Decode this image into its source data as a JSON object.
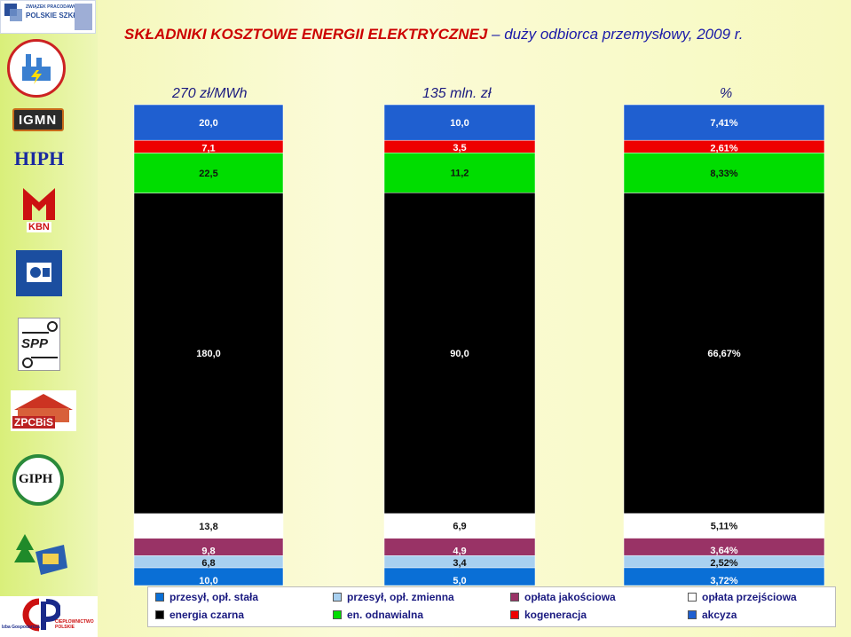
{
  "title": "SKŁADNIKI KOSZTOWE ENERGII ELEKTRYCZNEJ",
  "subtitle": "– duży odbiorca przemysłowy, 2009 r.",
  "logos": {
    "top": [
      "ZWIĄZEK PRACODAWCÓW",
      "POLSKIE SZKŁO"
    ],
    "igmn": "IGMN",
    "hiph": "HIPH",
    "kbn": "KBN",
    "spp": "SPP",
    "zpcbis": "ZPCBiS",
    "giph": "GIPH",
    "bottom": [
      "Izba Gospodarcza",
      "CIEPŁOWNICTWO POLSKIE"
    ]
  },
  "chart_data": {
    "type": "bar",
    "stacked": true,
    "categories": [
      "270 zł/MWh",
      "135 mln. zł",
      "%"
    ],
    "series": [
      {
        "name": "przesył, opł. stała",
        "color": "#0a6fd6",
        "values": [
          10.0,
          5.0,
          3.72
        ],
        "labels": [
          "10,0",
          "5,0",
          "3,72%"
        ]
      },
      {
        "name": "przesył, opł. zmienna",
        "color": "#a8d0f0",
        "values": [
          6.8,
          3.4,
          2.52
        ],
        "labels": [
          "6,8",
          "3,4",
          "2,52%"
        ]
      },
      {
        "name": "opłata jakościowa",
        "color": "#993366",
        "values": [
          9.8,
          4.9,
          3.64
        ],
        "labels": [
          "9,8",
          "4,9",
          "3,64%"
        ]
      },
      {
        "name": "opłata przejściowa",
        "color": "#ffffff",
        "values": [
          13.8,
          6.9,
          5.11
        ],
        "labels": [
          "13,8",
          "6,9",
          "5,11%"
        ]
      },
      {
        "name": "energia czarna",
        "color": "#000000",
        "values": [
          180.0,
          90.0,
          66.67
        ],
        "labels": [
          "180,0",
          "90,0",
          "66,67%"
        ]
      },
      {
        "name": "en. odnawialna",
        "color": "#00dd00",
        "values": [
          22.5,
          11.2,
          8.33
        ],
        "labels": [
          "22,5",
          "11,2",
          "8,33%"
        ]
      },
      {
        "name": "kogeneracja",
        "color": "#ee0000",
        "values": [
          7.1,
          3.5,
          2.61
        ],
        "labels": [
          "7,1",
          "3,5",
          "2,61%"
        ]
      },
      {
        "name": "akcyza",
        "color": "#1f5fd0",
        "values": [
          20.0,
          10.0,
          7.41
        ],
        "labels": [
          "20,0",
          "10,0",
          "7,41%"
        ]
      }
    ]
  },
  "legend_order": [
    0,
    1,
    2,
    3,
    4,
    5,
    6,
    7
  ]
}
